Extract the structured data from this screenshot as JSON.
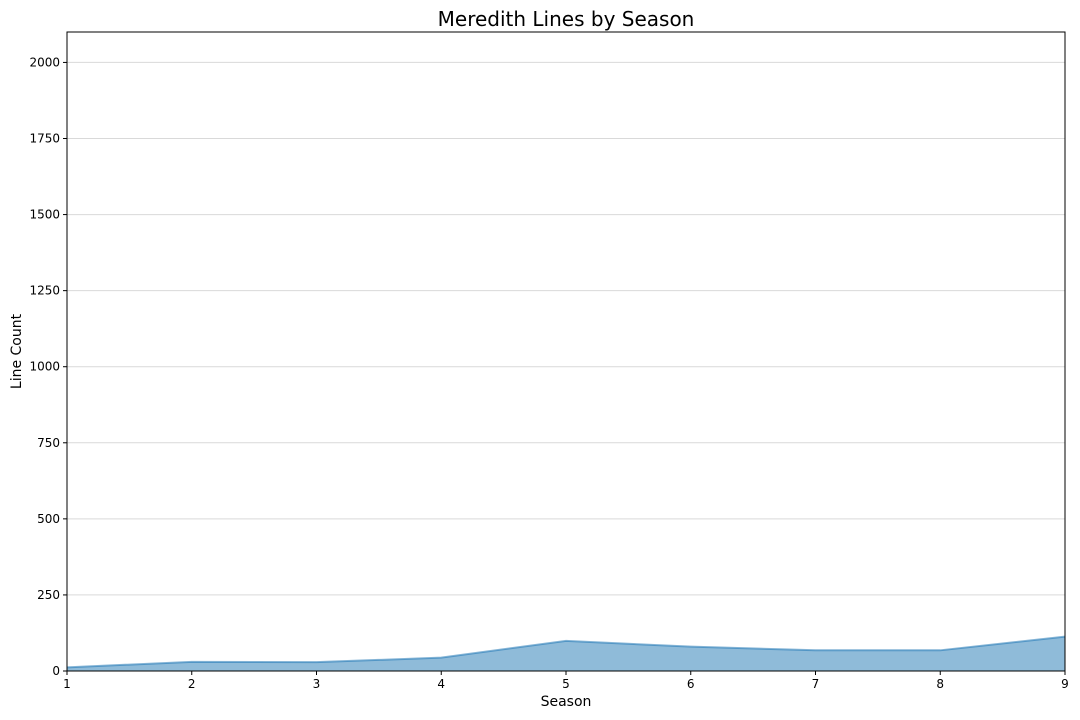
{
  "chart_data": {
    "type": "area",
    "title": "Meredith Lines by Season",
    "xlabel": "Season",
    "ylabel": "Line Count",
    "x": [
      1,
      2,
      3,
      4,
      5,
      6,
      7,
      8,
      9
    ],
    "series": [
      {
        "values": [
          12,
          30,
          29,
          44,
          99,
          80,
          68,
          68,
          113
        ],
        "color": "#1f77b4"
      }
    ],
    "xlim": [
      1,
      9
    ],
    "ylim": [
      0,
      2100
    ],
    "xticks": [
      "1",
      "2",
      "3",
      "4",
      "5",
      "6",
      "7",
      "8",
      "9"
    ],
    "yticks": [
      "0",
      "250",
      "500",
      "750",
      "1000",
      "1250",
      "1500",
      "1750",
      "2000"
    ],
    "grid": "y",
    "legend": "none"
  }
}
